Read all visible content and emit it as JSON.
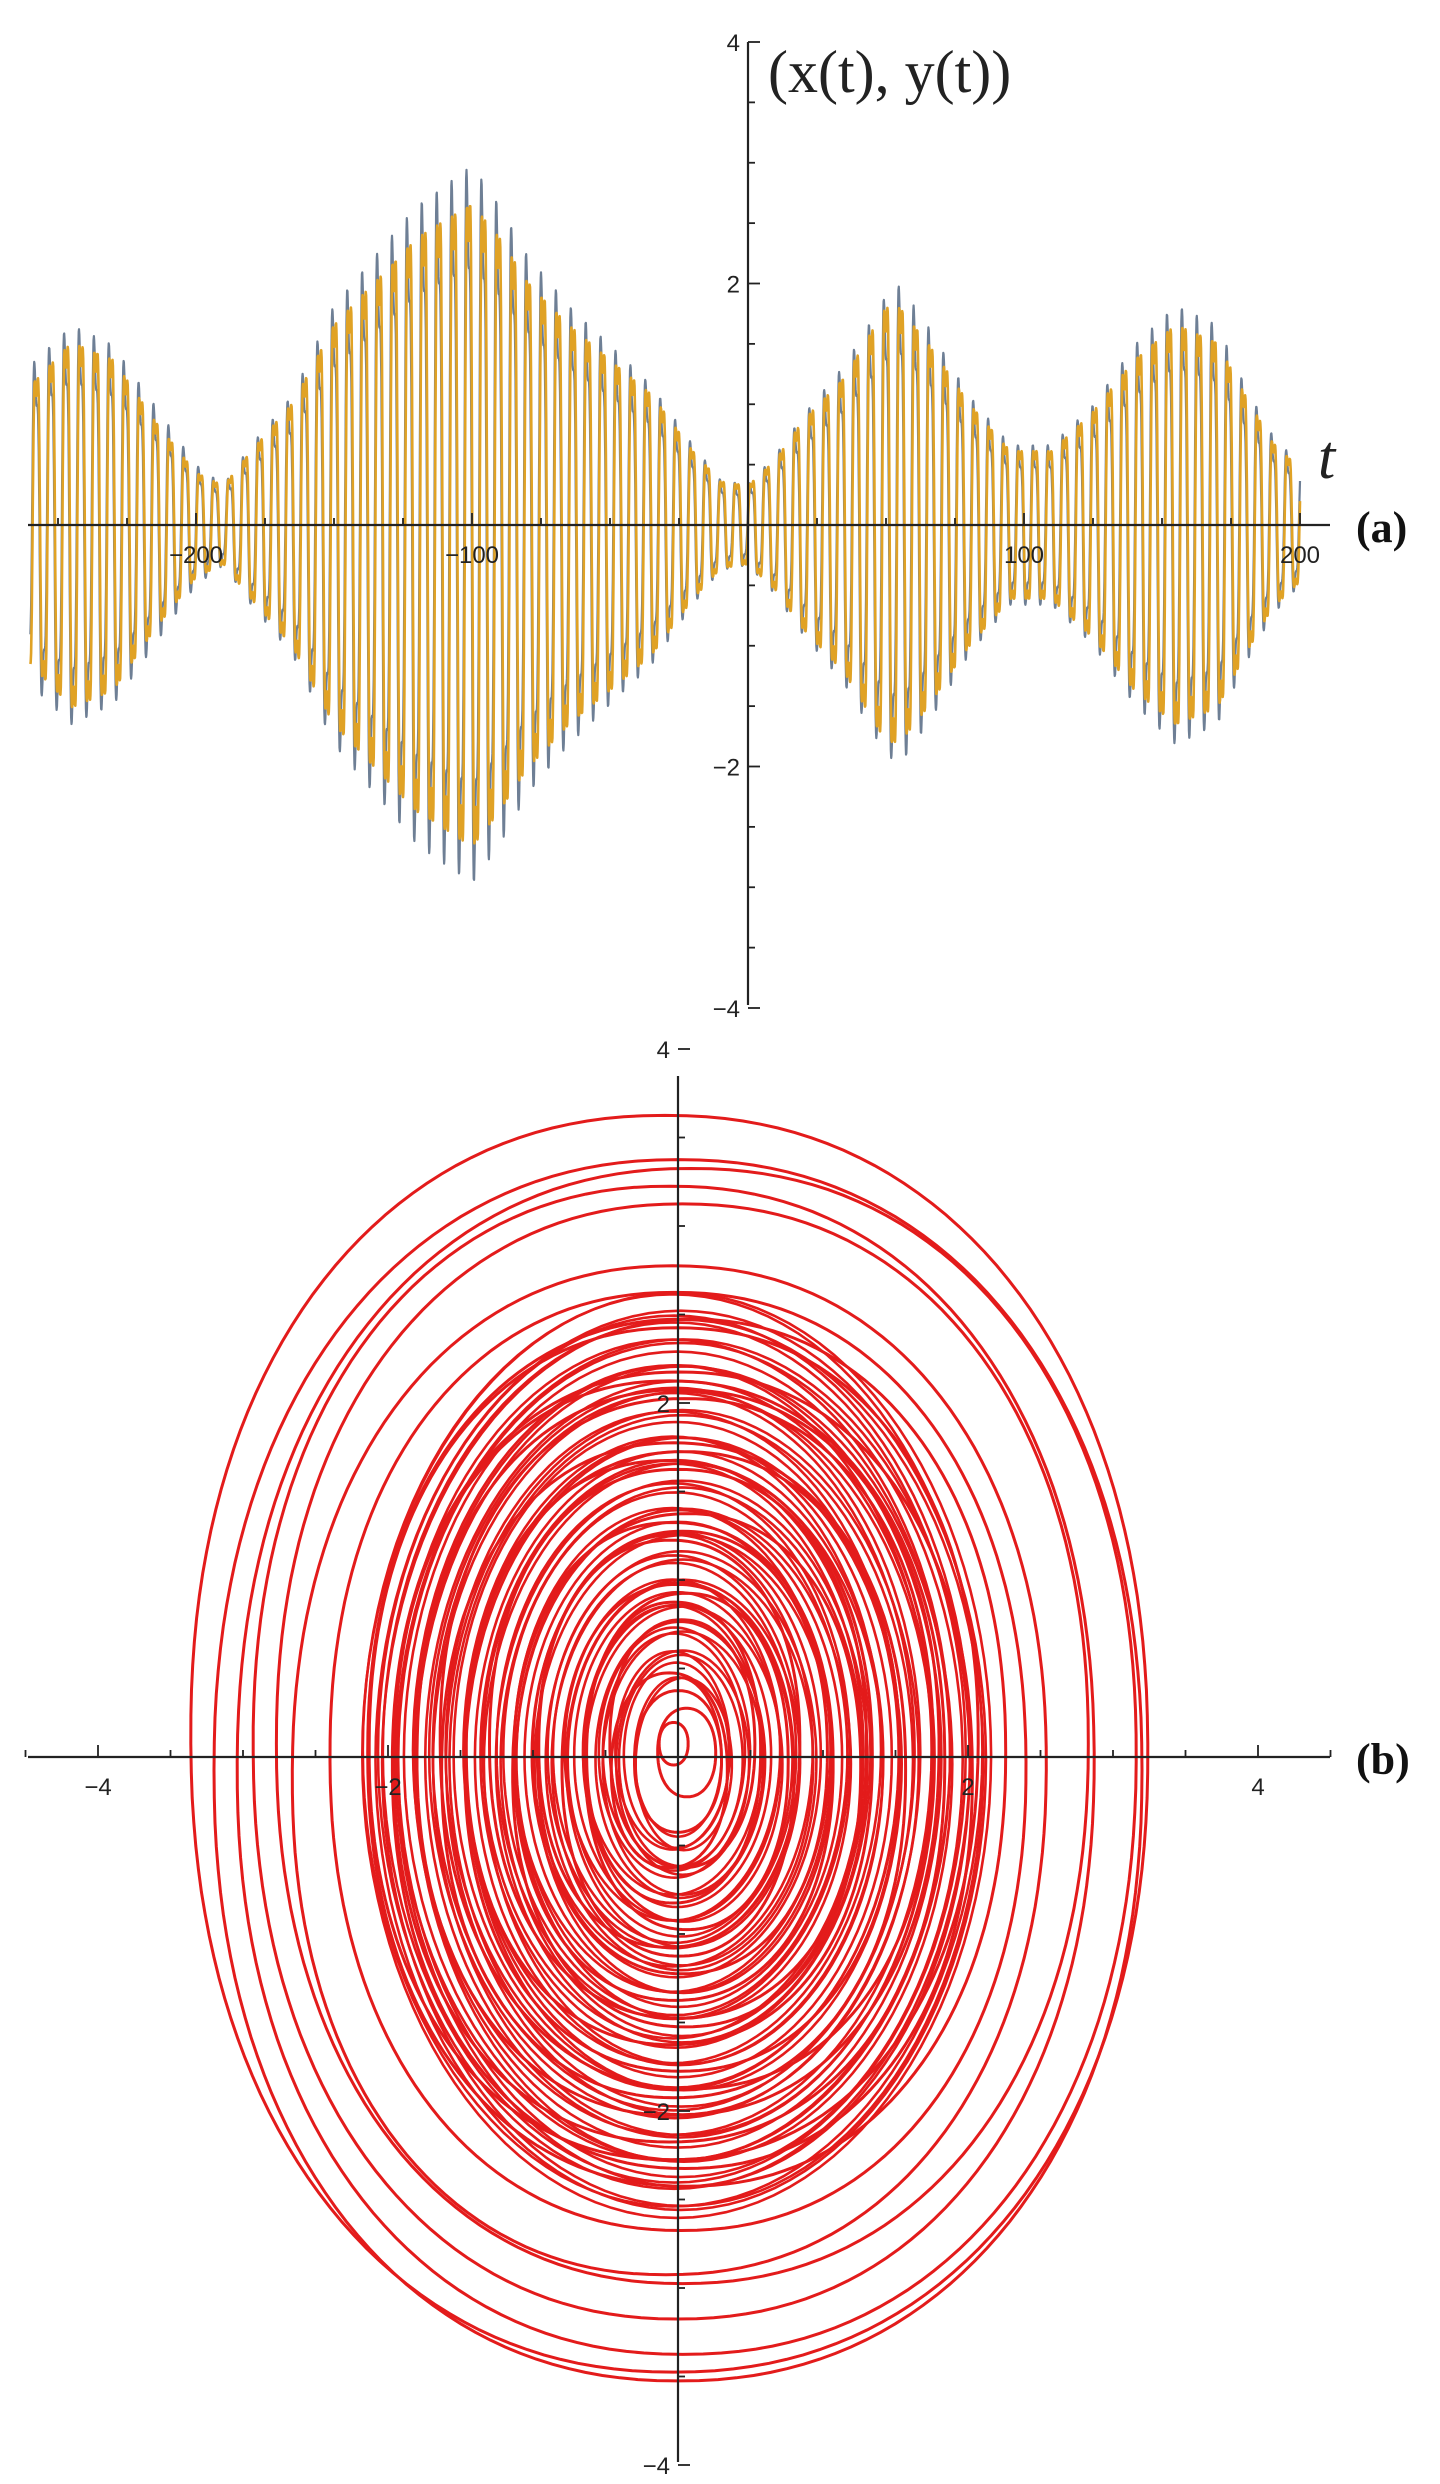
{
  "chart_data": [
    {
      "type": "line",
      "panel_label": "(a)",
      "title": "",
      "xlabel": "t",
      "ylabel": "(x(t), y(t))",
      "xlim": [
        -260,
        200
      ],
      "ylim": [
        -4,
        4
      ],
      "xticks": [
        -200,
        -100,
        100,
        200
      ],
      "yticks": [
        -4,
        -2,
        2,
        4
      ],
      "x_tick_labels": [
        "−200",
        "−100",
        "100",
        "200"
      ],
      "y_tick_labels": [
        "−4",
        "−2",
        "2",
        "4"
      ],
      "grid": false,
      "series": [
        {
          "color": "#6e7f95",
          "envelope": {
            "t": [
              -260,
              -245,
              -230,
              -215,
              -200,
              -190,
              -180,
              -165,
              -150,
              -135,
              -120,
              -105,
              -100,
              -90,
              -80,
              -65,
              -50,
              -35,
              -20,
              -10,
              0,
              10,
              20,
              35,
              50,
              55,
              65,
              80,
              95,
              110,
              125,
              140,
              155,
              170,
              180,
              190,
              200
            ],
            "amplitude": [
              1.6,
              2.0,
              1.8,
              1.2,
              0.6,
              0.4,
              0.8,
              1.3,
              2.2,
              2.7,
              3.2,
              3.5,
              3.6,
              3.2,
              2.7,
              2.2,
              1.8,
              1.4,
              0.8,
              0.45,
              0.4,
              0.7,
              1.1,
              1.6,
              2.3,
              2.4,
              2.0,
              1.3,
              0.8,
              0.8,
              1.2,
              1.8,
              2.2,
              2.0,
              1.4,
              0.9,
              0.6
            ]
          }
        },
        {
          "color": "#e0a225",
          "envelope": {
            "t": [
              -260,
              -245,
              -230,
              -215,
              -200,
              -190,
              -180,
              -165,
              -150,
              -135,
              -120,
              -105,
              -100,
              -90,
              -80,
              -65,
              -50,
              -35,
              -20,
              -10,
              0,
              10,
              20,
              35,
              50,
              55,
              65,
              80,
              95,
              110,
              125,
              140,
              155,
              170,
              180,
              190,
              200
            ],
            "amplitude": [
              1.6,
              2.1,
              1.9,
              1.2,
              0.6,
              0.45,
              0.85,
              1.4,
              2.3,
              2.8,
              3.3,
              3.6,
              3.7,
              3.3,
              2.8,
              2.3,
              1.9,
              1.5,
              0.85,
              0.5,
              0.45,
              0.75,
              1.2,
              1.7,
              2.5,
              2.5,
              2.1,
              1.4,
              0.85,
              0.85,
              1.3,
              1.9,
              2.3,
              2.1,
              1.5,
              0.95,
              0.65
            ]
          }
        }
      ]
    },
    {
      "type": "line",
      "panel_label": "(b)",
      "title": "",
      "xlabel": "",
      "ylabel": "",
      "xlim": [
        -4.5,
        4.5
      ],
      "ylim": [
        -4,
        4
      ],
      "xticks": [
        -4,
        -2,
        2,
        4
      ],
      "yticks": [
        -4,
        -2,
        2,
        4
      ],
      "x_tick_labels": [
        "−4",
        "−2",
        "2",
        "4"
      ],
      "y_tick_labels": [
        "−4",
        "−2",
        "2",
        "4"
      ],
      "grid": false,
      "series": [
        {
          "color": "#e31b1b",
          "phase_portrait": {
            "x_amplitude": [
              3.3,
              3.2,
              3.1,
              2.9,
              2.8,
              2.6,
              2.4,
              2.2,
              2.1,
              2.0,
              1.9,
              1.8,
              1.7,
              1.6,
              1.5,
              1.4,
              1.3,
              1.2,
              1.1,
              1.0,
              0.9,
              0.8,
              0.7,
              0.6,
              0.5,
              0.4,
              0.3,
              0.2,
              0.1
            ],
            "y_amplitude": [
              3.55,
              3.45,
              3.35,
              3.2,
              3.05,
              2.85,
              2.65,
              2.45,
              2.35,
              2.25,
              2.15,
              2.05,
              1.95,
              1.85,
              1.75,
              1.65,
              1.55,
              1.45,
              1.35,
              1.25,
              1.15,
              1.05,
              0.95,
              0.85,
              0.7,
              0.55,
              0.4,
              0.25,
              0.12
            ]
          }
        }
      ]
    }
  ]
}
